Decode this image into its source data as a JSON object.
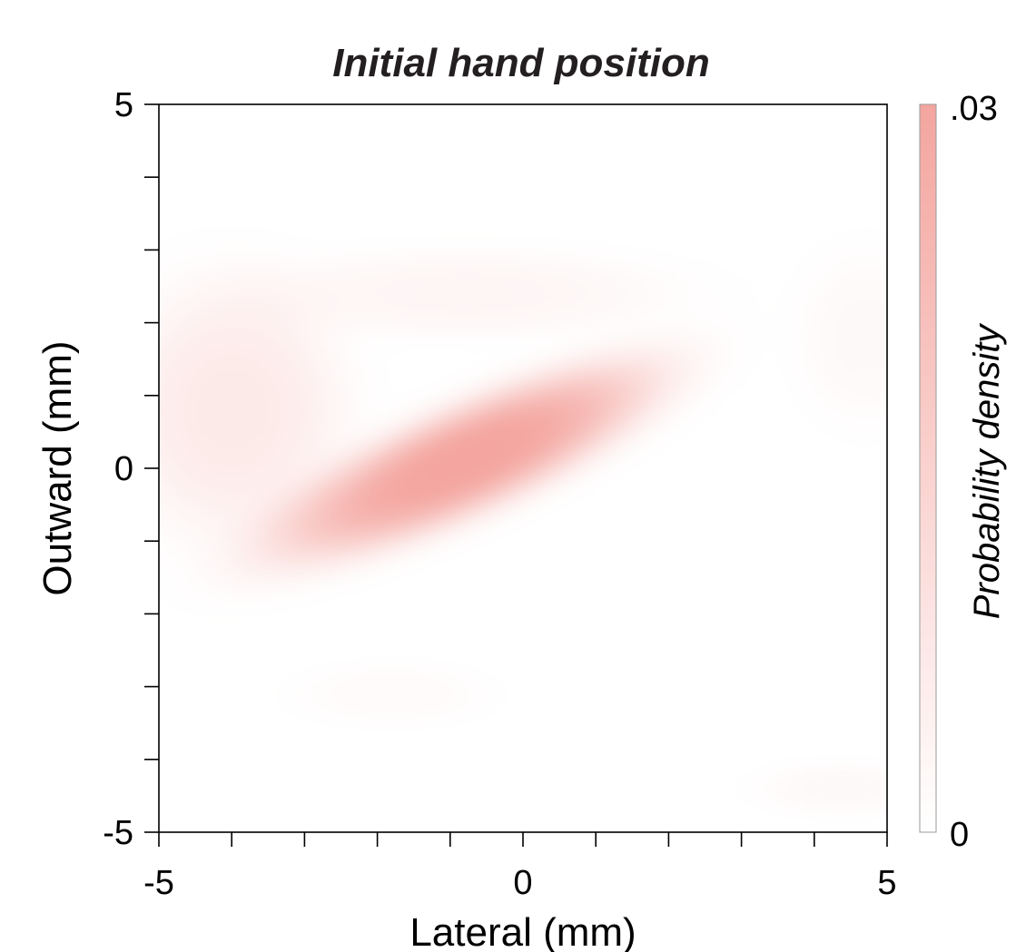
{
  "chart_data": {
    "type": "heatmap",
    "title": "Initial hand position",
    "xlabel": "Lateral (mm)",
    "ylabel": "Outward (mm)",
    "xlim": [
      -5,
      5
    ],
    "ylim": [
      -5,
      5
    ],
    "x_ticks": [
      -5,
      -4,
      -3,
      -2,
      -1,
      0,
      1,
      2,
      3,
      4,
      5
    ],
    "y_ticks": [
      -5,
      -4,
      -3,
      -2,
      -1,
      0,
      1,
      2,
      3,
      4,
      5
    ],
    "x_tick_labels": [
      {
        "value": -5,
        "label": "-5"
      },
      {
        "value": 0,
        "label": "0"
      },
      {
        "value": 5,
        "label": "5"
      }
    ],
    "y_tick_labels": [
      {
        "value": 5,
        "label": "5"
      },
      {
        "value": 0,
        "label": "0"
      },
      {
        "value": -5,
        "label": "-5"
      }
    ],
    "colorbar": {
      "label": "Probability density",
      "min": 0,
      "max": 0.03,
      "min_label": "0",
      "max_label": ".03",
      "color_low": "#ffffff",
      "color_high": "#f4a59f"
    },
    "density_components": [
      {
        "cx": -0.8,
        "cy": 0.1,
        "sx": 2.4,
        "sy": 0.62,
        "angle_deg": 24,
        "weight": 0.03
      },
      {
        "cx": -4.0,
        "cy": 0.8,
        "sx": 1.3,
        "sy": 1.5,
        "angle_deg": 0,
        "weight": 0.007
      },
      {
        "cx": -0.8,
        "cy": 2.4,
        "sx": 2.5,
        "sy": 0.5,
        "angle_deg": 0,
        "weight": 0.003
      },
      {
        "cx": 4.7,
        "cy": 1.8,
        "sx": 0.8,
        "sy": 1.0,
        "angle_deg": 0,
        "weight": 0.002
      },
      {
        "cx": -1.8,
        "cy": -3.1,
        "sx": 1.1,
        "sy": 0.35,
        "angle_deg": 0,
        "weight": 0.0015
      },
      {
        "cx": 4.4,
        "cy": -4.4,
        "sx": 1.0,
        "sy": 0.3,
        "angle_deg": 0,
        "weight": 0.002
      }
    ],
    "grid": false,
    "colorbar_placement": "right"
  }
}
